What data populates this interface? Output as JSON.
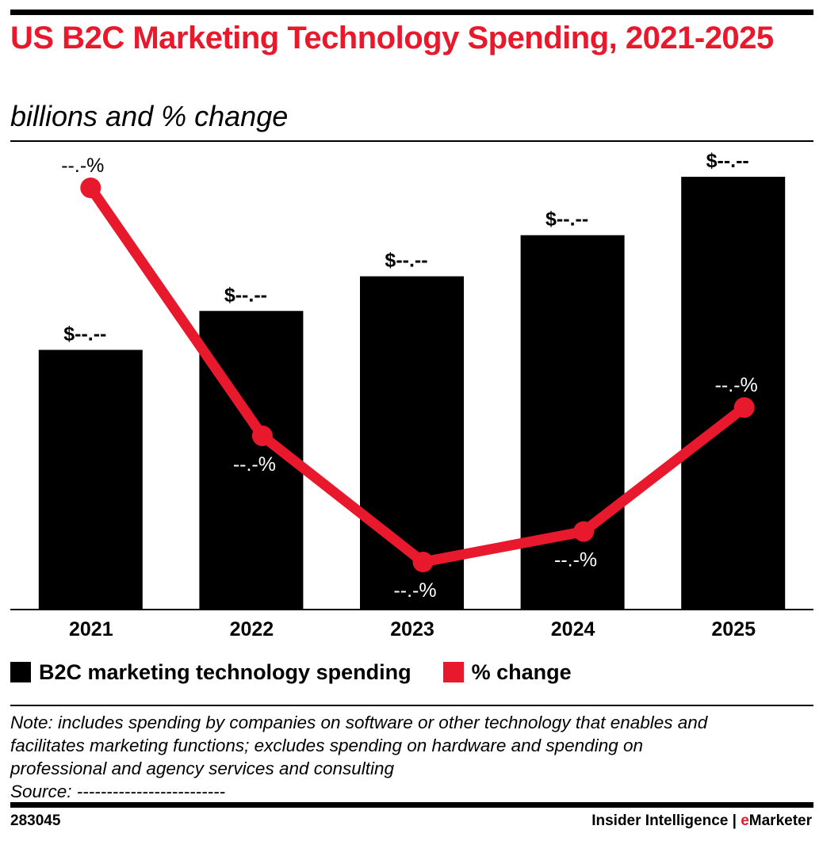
{
  "header": {
    "title": "US B2C Marketing Technology Spending, 2021-2025",
    "subtitle": "billions and % change"
  },
  "chart_data": {
    "type": "bar",
    "title": "US B2C Marketing Technology Spending, 2021-2025",
    "subtitle": "billions and % change",
    "categories": [
      "2021",
      "2022",
      "2023",
      "2024",
      "2025"
    ],
    "series": [
      {
        "name": "B2C marketing technology spending",
        "type": "bar",
        "color": "#000000",
        "values": [
          60,
          69,
          77,
          86.5,
          100
        ],
        "labels": [
          "$--.--",
          "$--.--",
          "$--.--",
          "$--.--",
          "$--.--"
        ]
      },
      {
        "name": "% change",
        "type": "line",
        "color": "#e8192c",
        "values": [
          97,
          40,
          11,
          18,
          46.5
        ],
        "labels": [
          "--.-%",
          "--.-%",
          "--.-%",
          "--.-%",
          "--.-%"
        ]
      }
    ],
    "ylim": [
      0,
      100
    ],
    "grid": false,
    "legend_position": "bottom"
  },
  "legend": {
    "items": [
      {
        "label": "B2C marketing technology spending",
        "color": "#000000"
      },
      {
        "label": "% change",
        "color": "#e8192c"
      }
    ]
  },
  "footnote": {
    "note_lines": [
      "Note: includes spending by companies on software or other technology that enables and",
      "facilitates marketing functions; excludes spending on hardware and spending on",
      "professional and agency services and consulting"
    ],
    "source": "Source: -------------------------"
  },
  "footer": {
    "chart_id": "283045",
    "brand_prefix": "Insider Intelligence | ",
    "brand_accent": "e",
    "brand_suffix": "Marketer"
  },
  "colors": {
    "accent": "#e8192c",
    "bar": "#000000"
  }
}
